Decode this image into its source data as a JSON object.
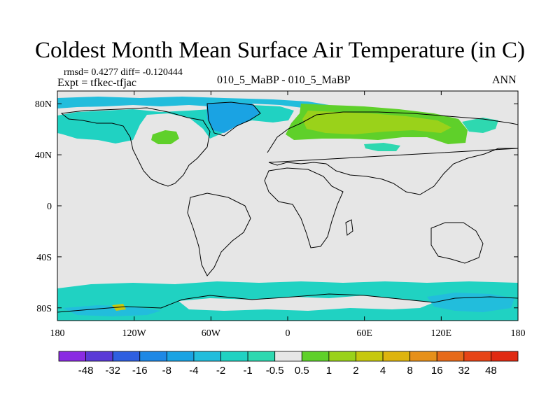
{
  "title": "Coldest Month Mean Surface Air Temperature (in C)",
  "stats": {
    "rmsd_diff": "rmsd= 0.4277 diff= -0.120444",
    "expt": "Expt = tfkec-tfjac"
  },
  "case_label": "010_5_MaBP - 010_5_MaBP",
  "season": "ANN",
  "axes": {
    "lat_ticks": [
      "80N",
      "40N",
      "0",
      "40S",
      "80S"
    ],
    "lon_ticks": [
      "180",
      "120W",
      "60W",
      "0",
      "60E",
      "120E",
      "180"
    ]
  },
  "colorbar": {
    "labels": [
      "-48",
      "-32",
      "-16",
      "-8",
      "-4",
      "-2",
      "-1",
      "-0.5",
      "0.5",
      "1",
      "2",
      "4",
      "8",
      "16",
      "32",
      "48"
    ],
    "colors": [
      "#8a2be2",
      "#5a3ad6",
      "#2f5fe0",
      "#1e88e5",
      "#1aa3e3",
      "#22bddc",
      "#20d2c2",
      "#2ed8b0",
      "#e6e6e6",
      "#5fd02a",
      "#9ad21a",
      "#c6c80e",
      "#ddb40e",
      "#e6901a",
      "#e66a1a",
      "#e64416",
      "#e02a12"
    ]
  },
  "chart_data": {
    "type": "heatmap",
    "title": "Coldest Month Mean Surface Air Temperature (in C)",
    "x_range": [
      -180,
      180
    ],
    "y_range": [
      -90,
      90
    ],
    "x_ticks": [
      -180,
      -120,
      -60,
      0,
      60,
      120,
      180
    ],
    "y_ticks": [
      80,
      40,
      0,
      -40,
      -80
    ],
    "levels": [
      -48,
      -32,
      -16,
      -8,
      -4,
      -2,
      -1,
      -0.5,
      0.5,
      1,
      2,
      4,
      8,
      16,
      32,
      48
    ],
    "background_value_range": [
      -0.5,
      0.5
    ],
    "shaded_regions": [
      {
        "region": "north Pacific / Alaska / Canada high latitudes",
        "lon": [
          -180,
          -60
        ],
        "lat": [
          55,
          85
        ],
        "level": "-2 to -1"
      },
      {
        "region": "Greenland",
        "lon": [
          -60,
          -20
        ],
        "lat": [
          60,
          85
        ],
        "level": "-4 to -2"
      },
      {
        "region": "central Canada patch",
        "lon": [
          -100,
          -80
        ],
        "lat": [
          52,
          58
        ],
        "level": "1 to 2"
      },
      {
        "region": "Scandinavia / northern Eurasia",
        "lon": [
          10,
          140
        ],
        "lat": [
          50,
          82
        ],
        "level": "1 to 2"
      },
      {
        "region": "northeast Siberia",
        "lon": [
          140,
          160
        ],
        "lat": [
          55,
          70
        ],
        "level": "-1 to -0.5"
      },
      {
        "region": "Antarctica / Southern Ocean",
        "lon": [
          -180,
          180
        ],
        "lat": [
          -90,
          -68
        ],
        "level": "-2 to -1"
      }
    ]
  }
}
